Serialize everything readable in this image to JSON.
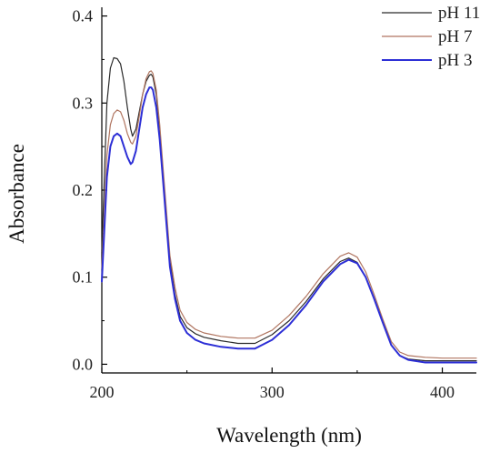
{
  "chart_data": {
    "type": "line",
    "title": "",
    "xlabel": "Wavelength (nm)",
    "ylabel": "Absorbance",
    "xlim": [
      200,
      420
    ],
    "ylim": [
      -0.01,
      0.41
    ],
    "x_ticks": [
      200,
      300,
      400
    ],
    "y_ticks": [
      0.0,
      0.1,
      0.2,
      0.3,
      0.4
    ],
    "x_tick_labels": [
      "200",
      "300",
      "400"
    ],
    "y_tick_labels": [
      "0.0",
      "0.1",
      "0.2",
      "0.3",
      "0.4"
    ],
    "grid": false,
    "legend_position": "top-right",
    "series": [
      {
        "name": "pH 11",
        "color": "#2a2a2a",
        "x": [
          200,
          203,
          205,
          207,
          209,
          211,
          213,
          215,
          217,
          218,
          220,
          222,
          224,
          226,
          228,
          229,
          230,
          232,
          234,
          236,
          238,
          240,
          243,
          246,
          250,
          255,
          260,
          270,
          280,
          290,
          300,
          310,
          320,
          330,
          340,
          345,
          350,
          355,
          360,
          365,
          370,
          375,
          380,
          390,
          400,
          410,
          420
        ],
        "y": [
          0.13,
          0.3,
          0.34,
          0.352,
          0.351,
          0.345,
          0.325,
          0.295,
          0.27,
          0.262,
          0.27,
          0.29,
          0.31,
          0.325,
          0.332,
          0.333,
          0.33,
          0.31,
          0.27,
          0.22,
          0.17,
          0.12,
          0.08,
          0.055,
          0.042,
          0.035,
          0.031,
          0.027,
          0.024,
          0.024,
          0.034,
          0.05,
          0.072,
          0.098,
          0.118,
          0.122,
          0.117,
          0.1,
          0.075,
          0.048,
          0.022,
          0.01,
          0.006,
          0.004,
          0.004,
          0.004,
          0.004
        ]
      },
      {
        "name": "pH 7",
        "color": "#b07560",
        "x": [
          200,
          203,
          205,
          207,
          209,
          211,
          213,
          215,
          217,
          218,
          220,
          222,
          224,
          226,
          228,
          229,
          230,
          232,
          234,
          236,
          238,
          240,
          243,
          246,
          250,
          255,
          260,
          270,
          280,
          290,
          300,
          310,
          320,
          330,
          340,
          345,
          350,
          355,
          360,
          365,
          370,
          375,
          380,
          390,
          400,
          410,
          420
        ],
        "y": [
          0.11,
          0.24,
          0.275,
          0.288,
          0.292,
          0.29,
          0.28,
          0.265,
          0.255,
          0.253,
          0.262,
          0.285,
          0.31,
          0.328,
          0.336,
          0.337,
          0.334,
          0.315,
          0.275,
          0.225,
          0.175,
          0.125,
          0.088,
          0.062,
          0.048,
          0.04,
          0.036,
          0.032,
          0.03,
          0.03,
          0.039,
          0.056,
          0.078,
          0.104,
          0.124,
          0.128,
          0.123,
          0.106,
          0.08,
          0.052,
          0.026,
          0.014,
          0.01,
          0.008,
          0.007,
          0.007,
          0.007
        ]
      },
      {
        "name": "pH 3",
        "color": "#2d2fd6",
        "x": [
          200,
          203,
          205,
          207,
          209,
          211,
          213,
          215,
          217,
          218,
          220,
          222,
          224,
          226,
          228,
          229,
          230,
          232,
          234,
          236,
          238,
          240,
          243,
          246,
          250,
          255,
          260,
          270,
          280,
          290,
          300,
          310,
          320,
          330,
          340,
          345,
          350,
          355,
          360,
          365,
          370,
          375,
          380,
          390,
          400,
          410,
          420
        ],
        "y": [
          0.095,
          0.215,
          0.25,
          0.262,
          0.265,
          0.262,
          0.25,
          0.238,
          0.23,
          0.232,
          0.245,
          0.27,
          0.295,
          0.31,
          0.318,
          0.318,
          0.315,
          0.295,
          0.258,
          0.21,
          0.16,
          0.112,
          0.075,
          0.05,
          0.036,
          0.028,
          0.024,
          0.02,
          0.018,
          0.018,
          0.028,
          0.045,
          0.068,
          0.095,
          0.115,
          0.12,
          0.116,
          0.1,
          0.075,
          0.048,
          0.022,
          0.01,
          0.005,
          0.002,
          0.002,
          0.002,
          0.002
        ]
      }
    ]
  }
}
